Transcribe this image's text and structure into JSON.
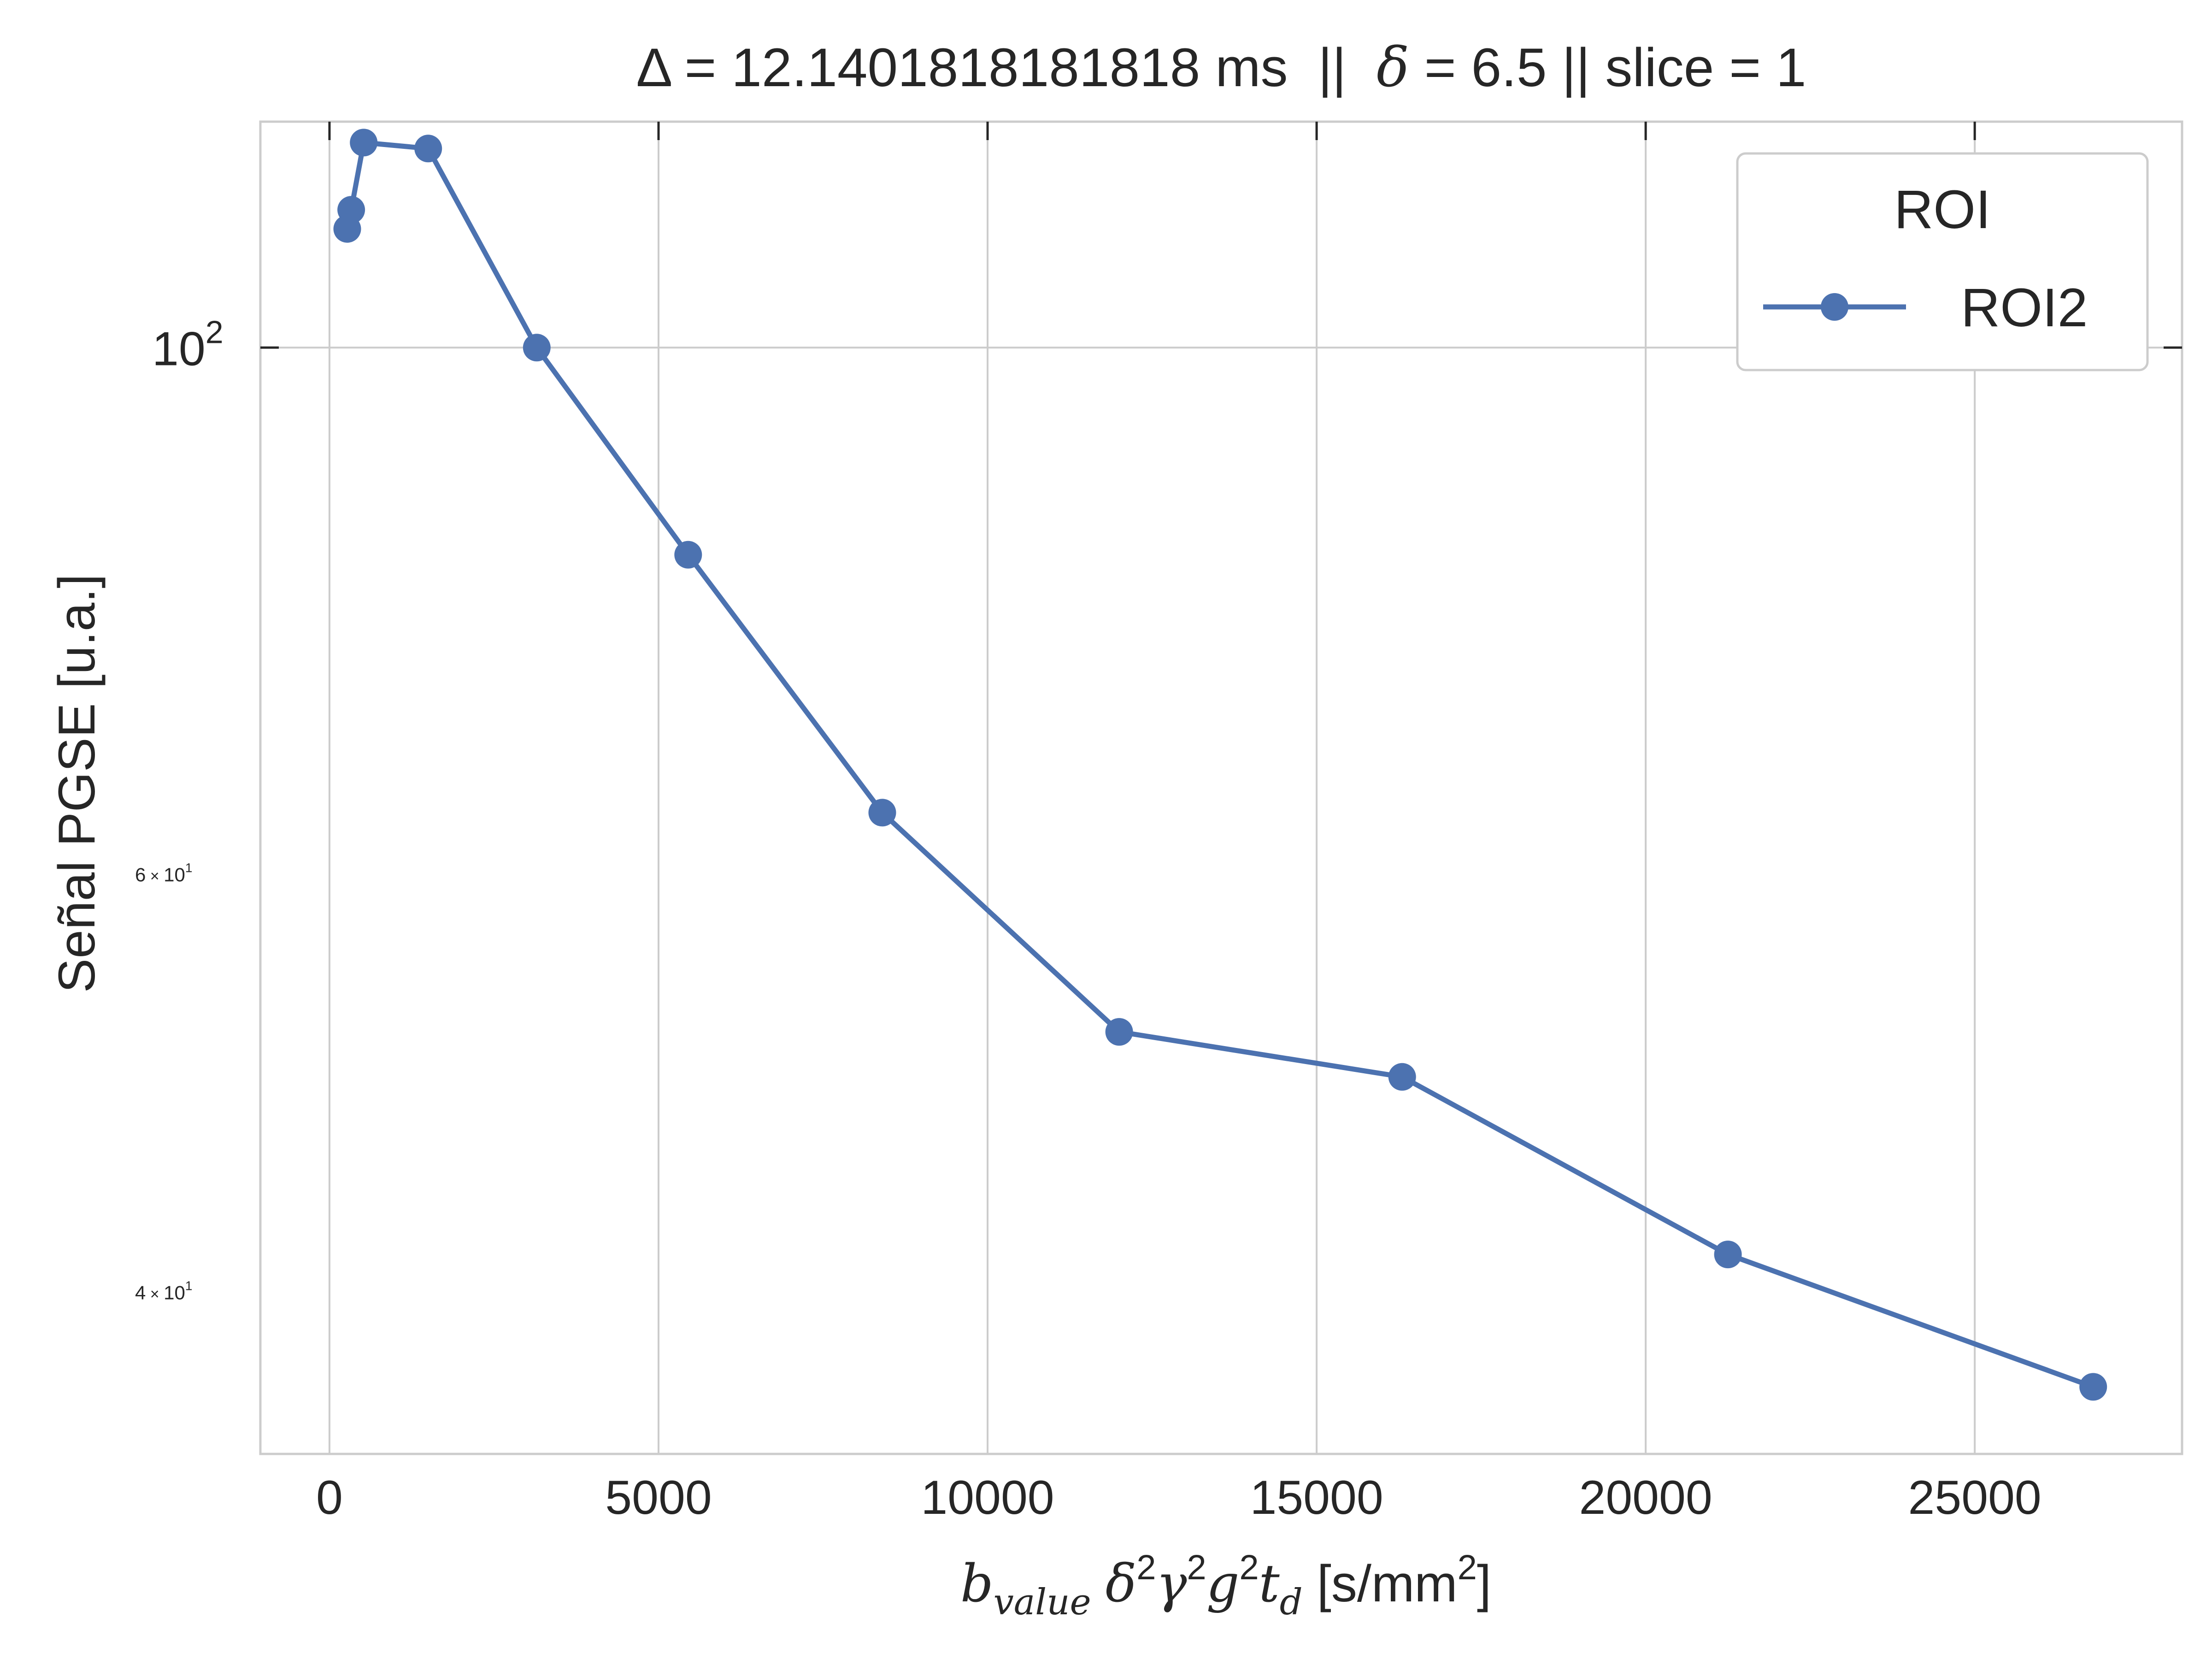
{
  "chart_data": {
    "type": "line",
    "title_prefix": "Δ = 12.1401818181818 ms  ||  ",
    "title_delta_symbol": "δ",
    "title_suffix": " = 6.5 || slice = 1",
    "xlabel_b": "b",
    "xlabel_sub": "value",
    "xlabel_delta": "δ",
    "xlabel_gamma": "γ",
    "xlabel_g": "g",
    "xlabel_t": "t",
    "xlabel_t_sub": "d",
    "xlabel_exp": "2",
    "xlabel_units_open": " [s/mm",
    "xlabel_units_close": "]",
    "ylabel": "Señal PGSE [u.a.]",
    "x_scale": "linear",
    "y_scale": "log",
    "xlim": [
      -1050,
      28150
    ],
    "ylim": [
      34.2,
      124.5
    ],
    "x_ticks": [
      0,
      5000,
      10000,
      15000,
      20000,
      25000
    ],
    "x_tick_labels": [
      "0",
      "5000",
      "10000",
      "15000",
      "20000",
      "25000"
    ],
    "y_major_tick": {
      "value": 100,
      "base": "10",
      "exp": "2"
    },
    "y_minor_ticks": [
      {
        "value": 60,
        "mant": "6",
        "times": "×",
        "base": "10",
        "exp": "1"
      },
      {
        "value": 40,
        "mant": "4",
        "times": "×",
        "base": "10",
        "exp": "1"
      }
    ],
    "grid": true,
    "legend": {
      "title": "ROI",
      "position": "top-right"
    },
    "series": [
      {
        "name": "ROI2",
        "color": "#4c72b0",
        "marker": "circle",
        "x": [
          270,
          330,
          520,
          1500,
          3150,
          5450,
          8400,
          12000,
          16300,
          21250,
          26800
        ],
        "y": [
          112.2,
          114.3,
          122.0,
          121.3,
          100.0,
          81.8,
          63.7,
          51.5,
          49.3,
          41.5,
          36.5
        ]
      }
    ]
  }
}
